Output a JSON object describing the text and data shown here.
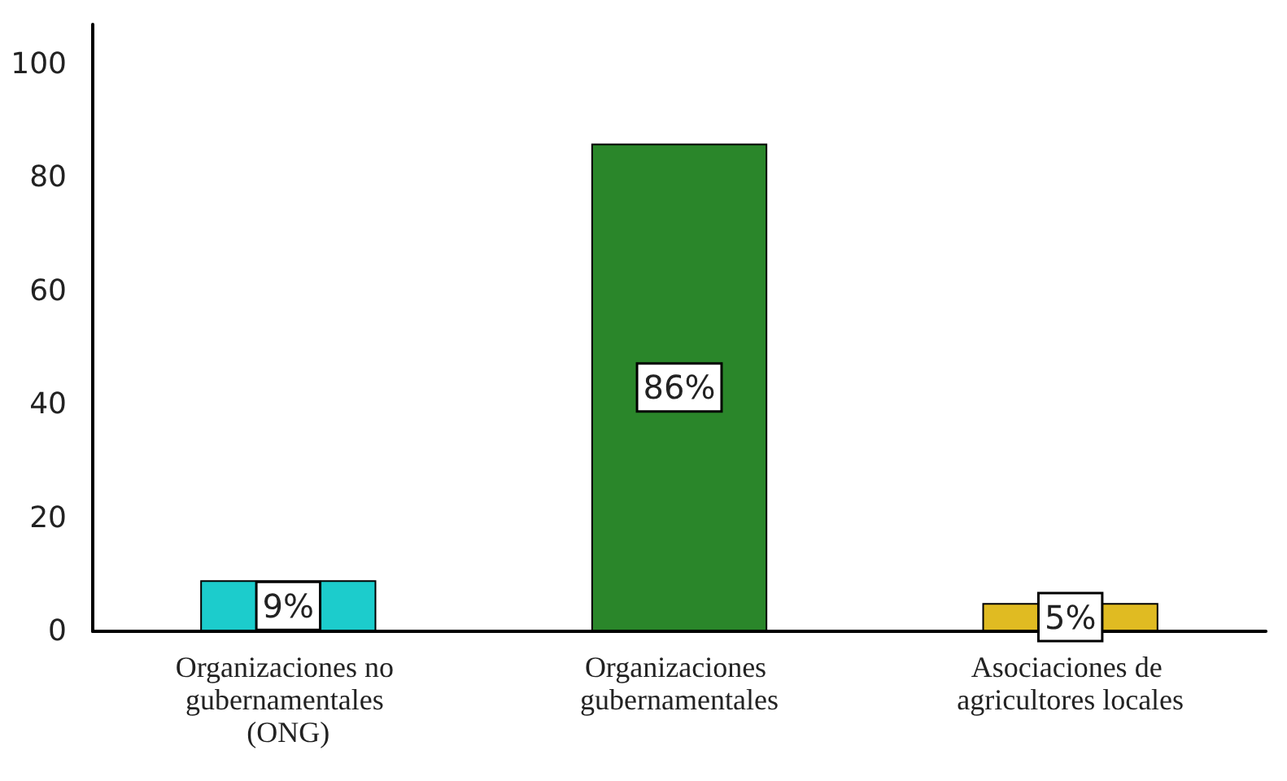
{
  "chart_data": {
    "type": "bar",
    "categories": [
      "Organizaciones no gubernamentales (ONG)",
      "Organizaciones gubernamentales",
      "Asociaciones de agricultores locales"
    ],
    "values": [
      9,
      86,
      5
    ],
    "colors": [
      "#1ccccc",
      "#2a862a",
      "#e0bb22"
    ],
    "value_labels": [
      "9%",
      "86%",
      "5%"
    ],
    "ylim": [
      0,
      107
    ],
    "yticks": [
      0,
      20,
      40,
      60,
      80,
      100
    ]
  }
}
